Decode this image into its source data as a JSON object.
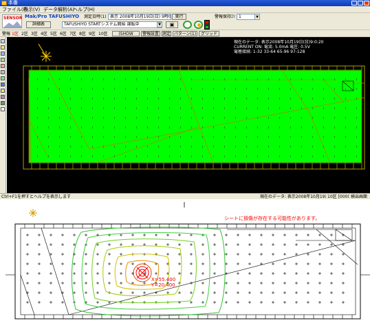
{
  "window": {
    "title": "本番"
  },
  "menu": {
    "items": [
      "ファイル(F)",
      "表示(V)",
      "データ解析(A)",
      "ヘルプ(H)"
    ]
  },
  "toolbar": {
    "logo_brand": "SENSOR",
    "logo_product": "Mak/Pro TAFUSHIYO",
    "settings_button": "詳細表",
    "status_field": "TAFUSHIYO STARTシステム開始 運転中",
    "measure_label": "測定日時(1)",
    "measure_value": "表示 2008年10月19日(日) 9時0分20秒",
    "exec_button": "実行",
    "hold_label": "警報保持ｴﾘｱ",
    "hold_value": "1"
  },
  "toolbar2": {
    "items": [
      "警報",
      "1区",
      "2区",
      "3区",
      "4区",
      "5区",
      "6区",
      "7区",
      "8区",
      "9区",
      "10区"
    ],
    "button_a": "(SHOW CND)",
    "button_b": "警報設置",
    "button_c": "測定",
    "button_d": "パターン(1)",
    "button_e": "グリッド"
  },
  "viewport": {
    "info_lines": [
      "現在のデータ: 表示2008年10月19日(日)9:0:20",
      "CURRENT ON: 電流: 5.0mA  電圧: 0.5V",
      "電極接続: 1-32  33-64  65-96  97-128"
    ]
  },
  "status": {
    "left": "Ctrl+F1を押すとヘルプを表示します",
    "right_a": "現在のデータ: 表示2008年10月19日(日)",
    "right_b": "10区 [0000]",
    "right_c": "検出画面"
  },
  "bottom": {
    "warning": "シートに損傷が存在する可能性があります。",
    "coord_x": "X=55.400",
    "coord_y": "Y=20.400"
  },
  "colors": {
    "accent": "#2a5bd7",
    "green_fill": "#00ff00",
    "warning_red": "#ff0000"
  }
}
